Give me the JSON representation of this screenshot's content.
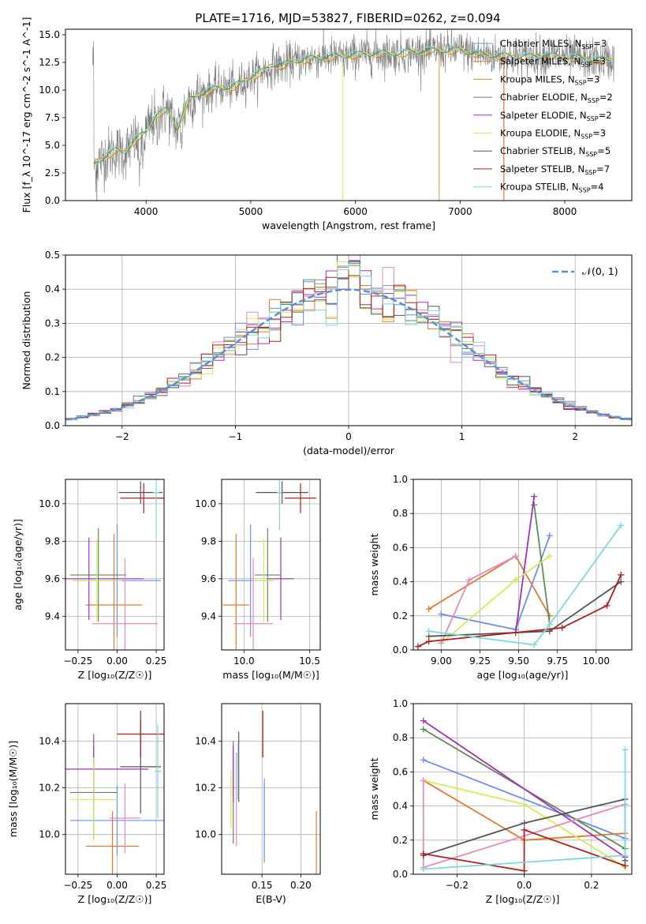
{
  "figure_title": "PLATE=1716, MJD=53827, FIBERID=0262, z=0.094",
  "colors": {
    "Chabrier MILES": "#6a8ee8",
    "Salpeter MILES": "#e07a2e",
    "Kroupa MILES": "#c79a2a",
    "Chabrier ELODIE": "#5f8a5a",
    "Salpeter ELODIE": "#a232b8",
    "Kroupa ELODIE": "#d6ea5a",
    "Chabrier STELIB": "#555555",
    "Salpeter STELIB": "#b01e1e",
    "Kroupa STELIB": "#7fd8dc",
    "pink": "#e48bbf",
    "data": "#808080",
    "normal": "#5b8fd6"
  },
  "chart_data": [
    {
      "type": "line",
      "panel": "spectrum",
      "xlabel": "wavelength [Angstrom, rest frame]",
      "ylabel": "Flux [f_λ 10^-17 erg cm^-2 s^-1 A^-1]",
      "xlim": [
        3230,
        8640
      ],
      "ylim": [
        0,
        15.5
      ],
      "xticks": [
        4000,
        5000,
        6000,
        7000,
        8000
      ],
      "yticks": [
        0.0,
        2.5,
        5.0,
        7.5,
        10.0,
        12.5,
        15.0
      ],
      "legend_position": "top-right",
      "legend": [
        {
          "name": "Chabrier MILES, N",
          "sub": "SSP",
          "suffix": "=3"
        },
        {
          "name": "Salpeter MILES, N",
          "sub": "SSP",
          "suffix": "=3"
        },
        {
          "name": "Kroupa MILES, N",
          "sub": "SSP",
          "suffix": "=3"
        },
        {
          "name": "Chabrier ELODIE, N",
          "sub": "SSP",
          "suffix": "=2"
        },
        {
          "name": "Salpeter ELODIE, N",
          "sub": "SSP",
          "suffix": "=2"
        },
        {
          "name": "Kroupa ELODIE, N",
          "sub": "SSP",
          "suffix": "=3"
        },
        {
          "name": "Chabrier STELIB, N",
          "sub": "SSP",
          "suffix": "=5"
        },
        {
          "name": "Salpeter STELIB, N",
          "sub": "SSP",
          "suffix": "=7"
        },
        {
          "name": "Kroupa STELIB, N",
          "sub": "SSP",
          "suffix": "=4"
        }
      ],
      "envelope": [
        [
          3500,
          3.2
        ],
        [
          3600,
          4.0
        ],
        [
          3700,
          4.5
        ],
        [
          3800,
          4.4
        ],
        [
          3900,
          5.5
        ],
        [
          4000,
          6.2
        ],
        [
          4100,
          7.8
        ],
        [
          4200,
          8.2
        ],
        [
          4300,
          6.5
        ],
        [
          4400,
          9.0
        ],
        [
          4500,
          9.6
        ],
        [
          4600,
          9.9
        ],
        [
          4700,
          10.3
        ],
        [
          4800,
          10.2
        ],
        [
          4900,
          10.6
        ],
        [
          5000,
          11.2
        ],
        [
          5100,
          11.6
        ],
        [
          5200,
          12.3
        ],
        [
          5300,
          12.2
        ],
        [
          5400,
          12.6
        ],
        [
          5500,
          12.7
        ],
        [
          5600,
          12.9
        ],
        [
          5700,
          13.0
        ],
        [
          5800,
          13.0
        ],
        [
          5900,
          13.1
        ],
        [
          6000,
          13.2
        ],
        [
          6200,
          13.3
        ],
        [
          6400,
          13.3
        ],
        [
          6600,
          13.5
        ],
        [
          6800,
          13.6
        ],
        [
          7000,
          13.6
        ],
        [
          7200,
          13.2
        ],
        [
          7400,
          13.1
        ],
        [
          7600,
          13.0
        ],
        [
          7800,
          13.1
        ],
        [
          8000,
          13.0
        ],
        [
          8200,
          12.8
        ],
        [
          8400,
          12.7
        ]
      ]
    },
    {
      "type": "line",
      "panel": "residual-distribution",
      "xlabel": "(data-model)/error",
      "ylabel": "Normed distribution",
      "xlim": [
        -2.5,
        2.5
      ],
      "ylim": [
        0,
        0.5
      ],
      "xticks": [
        -2,
        -1,
        0,
        1,
        2
      ],
      "yticks": [
        0.0,
        0.1,
        0.2,
        0.3,
        0.4,
        0.5
      ],
      "bin_width": 0.1,
      "legend_label": "𝒩(0, 1)",
      "legend_position": "top-right"
    },
    {
      "type": "scatter",
      "panel": "metallicity-vs-age",
      "xlabel": "Z [log₁₀(Z/Z☉)]",
      "ylabel": "age  [log₁₀(age/yr)]",
      "xlim": [
        -0.33,
        0.3
      ],
      "ylim": [
        9.22,
        10.13
      ],
      "xticks": [
        -0.25,
        0.0,
        0.25
      ],
      "yticks": [
        9.4,
        9.6,
        9.8,
        10.0
      ],
      "points": [
        {
          "color": "Chabrier MILES",
          "x": 0.0,
          "xerr": 0.28,
          "y": 9.59,
          "yerr": 0.3
        },
        {
          "color": "Salpeter MILES",
          "x": -0.02,
          "xerr": 0.18,
          "y": 9.46,
          "yerr": 0.38
        },
        {
          "color": "Chabrier ELODIE",
          "x": -0.12,
          "xerr": 0.18,
          "y": 9.62,
          "yerr": 0.25
        },
        {
          "color": "Salpeter ELODIE",
          "x": -0.18,
          "xerr": 0.35,
          "y": 9.6,
          "yerr": 0.22
        },
        {
          "color": "Kroupa ELODIE",
          "x": -0.13,
          "xerr": 0.16,
          "y": 9.59,
          "yerr": 0.22
        },
        {
          "color": "pink",
          "x": 0.05,
          "xerr": 0.21,
          "y": 9.36,
          "yerr": 0.35
        },
        {
          "color": "Chabrier STELIB",
          "x": 0.15,
          "xerr": 0.14,
          "y": 10.06,
          "yerr": 0.06
        },
        {
          "color": "Salpeter STELIB",
          "x": 0.17,
          "xerr": 0.15,
          "y": 10.03,
          "yerr": 0.08
        },
        {
          "color": "Kroupa STELIB",
          "x": 0.25,
          "xerr": 0.02,
          "y": 10.06,
          "yerr": 0.24
        }
      ]
    },
    {
      "type": "scatter",
      "panel": "mass-vs-age",
      "xlabel": "mass [log₁₀(M/M☉)]",
      "ylabel": "",
      "xlim": [
        9.83,
        10.58
      ],
      "ylim": [
        9.22,
        10.13
      ],
      "xticks": [
        10.0,
        10.5
      ],
      "yticks": [
        9.4,
        9.6,
        9.8,
        10.0
      ],
      "points": [
        {
          "color": "Chabrier MILES",
          "x": 10.05,
          "xerr": 0.17,
          "y": 9.59,
          "yerr": 0.3
        },
        {
          "color": "Salpeter MILES",
          "x": 9.94,
          "xerr": 0.1,
          "y": 9.46,
          "yerr": 0.38
        },
        {
          "color": "Chabrier ELODIE",
          "x": 10.18,
          "xerr": 0.1,
          "y": 9.62,
          "yerr": 0.25
        },
        {
          "color": "Salpeter ELODIE",
          "x": 10.28,
          "xerr": 0.1,
          "y": 9.6,
          "yerr": 0.22
        },
        {
          "color": "Kroupa ELODIE",
          "x": 10.15,
          "xerr": 0.09,
          "y": 9.59,
          "yerr": 0.22
        },
        {
          "color": "pink",
          "x": 10.07,
          "xerr": 0.15,
          "y": 9.36,
          "yerr": 0.35
        },
        {
          "color": "Chabrier STELIB",
          "x": 10.29,
          "xerr": 0.2,
          "y": 10.06,
          "yerr": 0.06
        },
        {
          "color": "Salpeter STELIB",
          "x": 10.43,
          "xerr": 0.12,
          "y": 10.03,
          "yerr": 0.08
        },
        {
          "color": "Kroupa STELIB",
          "x": 10.27,
          "xerr": 0.02,
          "y": 10.06,
          "yerr": 0.2
        }
      ]
    },
    {
      "type": "line",
      "panel": "age-vs-mass-weight",
      "xlabel": "age  [log₁₀(age/yr)]",
      "ylabel": "mass weight",
      "xlim": [
        8.82,
        10.23
      ],
      "ylim": [
        0,
        1.0
      ],
      "xticks": [
        9.0,
        9.25,
        9.5,
        9.75,
        10.0
      ],
      "yticks": [
        0.0,
        0.2,
        0.4,
        0.6,
        0.8,
        1.0
      ],
      "series": [
        {
          "color": "Chabrier MILES",
          "points": [
            [
              9.0,
              0.21
            ],
            [
              9.48,
              0.12
            ],
            [
              9.7,
              0.67
            ]
          ]
        },
        {
          "color": "Salpeter MILES",
          "points": [
            [
              8.92,
              0.24
            ],
            [
              9.48,
              0.55
            ],
            [
              9.7,
              0.2
            ]
          ]
        },
        {
          "color": "Chabrier ELODIE",
          "points": [
            [
              9.6,
              0.85
            ],
            [
              9.7,
              0.15
            ]
          ]
        },
        {
          "color": "Salpeter ELODIE",
          "points": [
            [
              9.48,
              0.1
            ],
            [
              9.6,
              0.9
            ]
          ]
        },
        {
          "color": "Kroupa ELODIE",
          "points": [
            [
              9.0,
              0.04
            ],
            [
              9.48,
              0.41
            ],
            [
              9.7,
              0.55
            ]
          ]
        },
        {
          "color": "pink",
          "points": [
            [
              9.0,
              0.04
            ],
            [
              9.18,
              0.41
            ],
            [
              9.48,
              0.55
            ]
          ]
        },
        {
          "color": "Chabrier STELIB",
          "points": [
            [
              8.92,
              0.08
            ],
            [
              9.7,
              0.11
            ],
            [
              10.16,
              0.4
            ]
          ]
        },
        {
          "color": "Salpeter STELIB",
          "points": [
            [
              8.85,
              0.02
            ],
            [
              8.92,
              0.05
            ],
            [
              9.78,
              0.13
            ],
            [
              10.07,
              0.26
            ],
            [
              10.16,
              0.44
            ]
          ]
        },
        {
          "color": "Kroupa STELIB",
          "points": [
            [
              8.92,
              0.11
            ],
            [
              9.6,
              0.03
            ],
            [
              9.7,
              0.15
            ],
            [
              10.16,
              0.73
            ]
          ]
        }
      ]
    },
    {
      "type": "scatter",
      "panel": "metallicity-vs-mass",
      "xlabel": "Z [log₁₀(Z/Z☉)]",
      "ylabel": "mass [log₁₀(M/M☉)]",
      "xlim": [
        -0.33,
        0.3
      ],
      "ylim": [
        9.83,
        10.56
      ],
      "xticks": [
        -0.25,
        0.0,
        0.25
      ],
      "yticks": [
        10.0,
        10.2,
        10.4
      ],
      "points": [
        {
          "color": "Chabrier MILES",
          "x": 0.0,
          "xerr": 0.3,
          "y": 10.06,
          "yerr": 0.15
        },
        {
          "color": "Salpeter MILES",
          "x": -0.03,
          "xerr": 0.17,
          "y": 9.95,
          "yerr": 0.15
        },
        {
          "color": "Chabrier ELODIE",
          "x": -0.15,
          "xerr": 0.15,
          "y": 10.18,
          "yerr": 0.2
        },
        {
          "color": "Salpeter ELODIE",
          "x": -0.15,
          "xerr": 0.35,
          "y": 10.28,
          "yerr": 0.15
        },
        {
          "color": "Kroupa ELODIE",
          "x": -0.15,
          "xerr": 0.15,
          "y": 10.15,
          "yerr": 0.18
        },
        {
          "color": "pink",
          "x": 0.05,
          "xerr": 0.1,
          "y": 10.07,
          "yerr": 0.15
        },
        {
          "color": "Chabrier STELIB",
          "x": 0.15,
          "xerr": 0.13,
          "y": 10.29,
          "yerr": 0.2
        },
        {
          "color": "Salpeter STELIB",
          "x": 0.15,
          "xerr": 0.15,
          "y": 10.43,
          "yerr": 0.1
        },
        {
          "color": "Kroupa STELIB",
          "x": 0.26,
          "xerr": 0.02,
          "y": 10.27,
          "yerr": 0.2
        }
      ]
    },
    {
      "type": "scatter",
      "panel": "ebv-vs-mass",
      "xlabel": "E(B-V)",
      "ylabel": "",
      "xlim": [
        0.098,
        0.225
      ],
      "ylim": [
        9.83,
        10.56
      ],
      "xticks": [
        0.15,
        0.2
      ],
      "yticks": [
        10.0,
        10.2,
        10.4
      ],
      "points": [
        {
          "color": "Chabrier MILES",
          "x": 0.153,
          "y": 10.06,
          "yerr": 0.18
        },
        {
          "color": "Salpeter MILES",
          "x": 0.22,
          "y": 9.95,
          "yerr": 0.15
        },
        {
          "color": "Chabrier ELODIE",
          "x": 0.113,
          "y": 10.18,
          "yerr": 0.22
        },
        {
          "color": "Salpeter ELODIE",
          "x": 0.113,
          "y": 10.26,
          "yerr": 0.12
        },
        {
          "color": "Kroupa ELODIE",
          "x": 0.11,
          "y": 10.15,
          "yerr": 0.12
        },
        {
          "color": "pink",
          "x": 0.117,
          "y": 10.15,
          "yerr": 0.2
        },
        {
          "color": "Chabrier STELIB",
          "x": 0.12,
          "y": 10.29,
          "yerr": 0.15
        },
        {
          "color": "Salpeter STELIB",
          "x": 0.151,
          "y": 10.43,
          "yerr": 0.1
        },
        {
          "color": "Kroupa STELIB",
          "x": 0.119,
          "y": 10.27,
          "yerr": 0.12
        }
      ]
    },
    {
      "type": "line",
      "panel": "metallicity-vs-mass-weight",
      "xlabel": "Z [log₁₀(Z/Z☉)]",
      "ylabel": "mass weight",
      "xlim": [
        -0.33,
        0.32
      ],
      "ylim": [
        0,
        1.0
      ],
      "xticks": [
        -0.2,
        0.0,
        0.2
      ],
      "yticks": [
        0.0,
        0.2,
        0.4,
        0.6,
        0.8,
        1.0
      ],
      "series": [
        {
          "color": "Chabrier MILES",
          "points": [
            [
              -0.3,
              0.67
            ],
            [
              0.3,
              0.21
            ]
          ]
        },
        {
          "color": "Salpeter MILES",
          "points": [
            [
              -0.3,
              0.55
            ],
            [
              0.0,
              0.2
            ],
            [
              0.3,
              0.24
            ]
          ]
        },
        {
          "color": "Chabrier ELODIE",
          "points": [
            [
              -0.3,
              0.85
            ],
            [
              0.3,
              0.15
            ]
          ]
        },
        {
          "color": "Salpeter ELODIE",
          "points": [
            [
              -0.3,
              0.9
            ],
            [
              0.3,
              0.1
            ]
          ]
        },
        {
          "color": "Kroupa ELODIE",
          "points": [
            [
              -0.3,
              0.55
            ],
            [
              0.0,
              0.41
            ],
            [
              0.3,
              0.04
            ]
          ]
        },
        {
          "color": "pink",
          "points": [
            [
              -0.3,
              0.55
            ],
            [
              -0.3,
              0.04
            ],
            [
              0.3,
              0.41
            ]
          ]
        },
        {
          "color": "Chabrier STELIB",
          "points": [
            [
              -0.3,
              0.11
            ],
            [
              0.0,
              0.3
            ],
            [
              0.3,
              0.44
            ],
            [
              0.3,
              0.08
            ]
          ]
        },
        {
          "color": "Salpeter STELIB",
          "points": [
            [
              -0.3,
              0.12
            ],
            [
              0.0,
              0.02
            ],
            [
              0.0,
              0.26
            ],
            [
              0.3,
              0.05
            ]
          ]
        },
        {
          "color": "Kroupa STELIB",
          "points": [
            [
              -0.3,
              0.03
            ],
            [
              0.3,
              0.11
            ],
            [
              0.3,
              0.73
            ]
          ]
        }
      ]
    }
  ]
}
